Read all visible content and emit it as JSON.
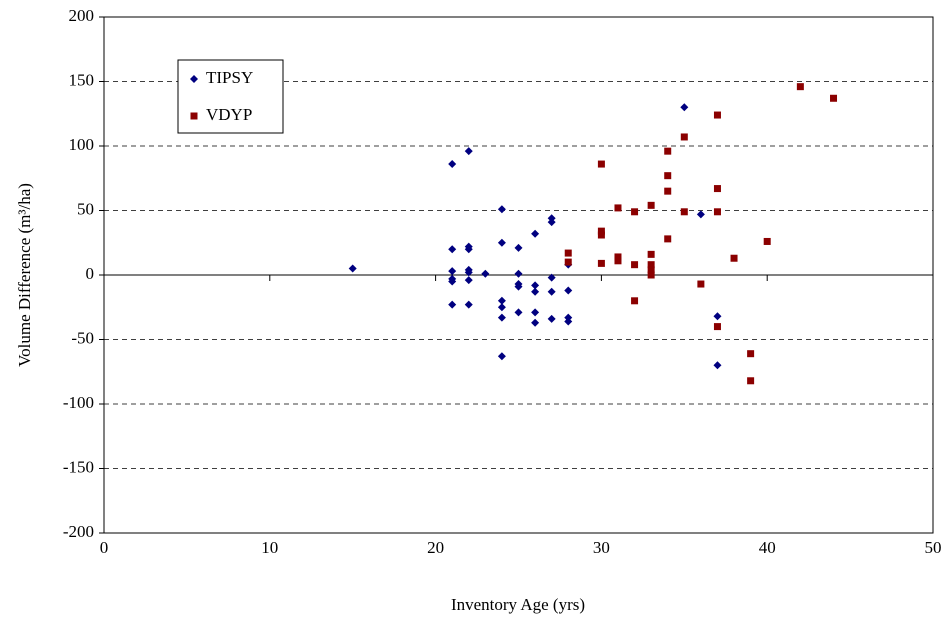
{
  "chart_data": {
    "type": "scatter",
    "x_label": "Inventory Age (yrs)",
    "y_label": "Volume Difference (m³/ha)",
    "xlim": [
      0,
      50
    ],
    "xticks": [
      0,
      10,
      20,
      30,
      40,
      50
    ],
    "ylim": [
      -200,
      200
    ],
    "yticks": [
      -200,
      -150,
      -100,
      -50,
      0,
      50,
      100,
      150,
      200
    ],
    "grid": true,
    "legend": "top-left",
    "series": [
      {
        "name": "TIPSY",
        "color": "#000080",
        "marker": "diamond",
        "x": [
          15,
          21,
          21,
          21,
          21,
          21,
          21,
          22,
          22,
          22,
          22,
          22,
          22,
          22,
          23,
          24,
          24,
          24,
          24,
          24,
          24,
          25,
          25,
          25,
          25,
          25,
          26,
          26,
          26,
          26,
          26,
          27,
          27,
          27,
          27,
          27,
          28,
          28,
          28,
          28,
          35,
          36,
          37,
          37
        ],
        "values": [
          5,
          86,
          20,
          3,
          -3,
          -5,
          -23,
          96,
          22,
          20,
          4,
          2,
          -4,
          -23,
          1,
          51,
          25,
          -20,
          -25,
          -33,
          -63,
          21,
          1,
          -7,
          -9,
          -29,
          32,
          -8,
          -13,
          -29,
          -37,
          44,
          41,
          -2,
          -13,
          -34,
          8,
          -12,
          -33,
          -36,
          130,
          47,
          -32,
          -70
        ]
      },
      {
        "name": "VDYP",
        "color": "#8b0000",
        "marker": "square",
        "x": [
          28,
          28,
          30,
          30,
          30,
          30,
          31,
          31,
          31,
          32,
          32,
          32,
          33,
          33,
          33,
          33,
          33,
          34,
          34,
          34,
          34,
          35,
          35,
          36,
          37,
          37,
          37,
          37,
          38,
          39,
          39,
          40,
          42,
          44
        ],
        "values": [
          17,
          10,
          86,
          34,
          31,
          9,
          52,
          14,
          11,
          49,
          8,
          -20,
          54,
          16,
          8,
          4,
          0,
          96,
          77,
          65,
          28,
          107,
          49,
          -7,
          124,
          67,
          49,
          -40,
          13,
          -61,
          -82,
          26,
          146,
          137
        ]
      }
    ]
  }
}
